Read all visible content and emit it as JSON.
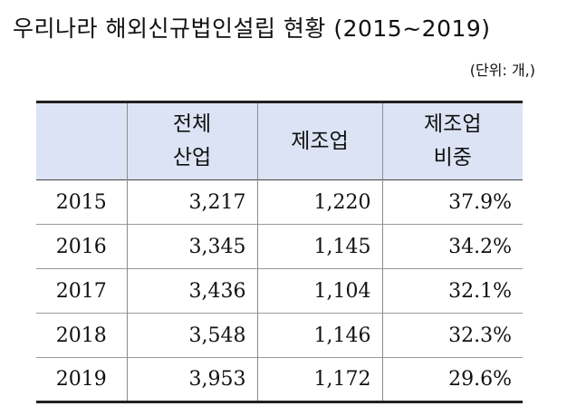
{
  "title": "우리나라 해외신규법인설립 현황 (2015~2019)",
  "unit": "(단위: 개,)",
  "table": {
    "headers": [
      {
        "lines": [
          "",
          ""
        ]
      },
      {
        "lines": [
          "전체",
          "산업"
        ]
      },
      {
        "lines": [
          "제조업"
        ]
      },
      {
        "lines": [
          "제조업",
          "비중"
        ]
      }
    ],
    "rows": [
      {
        "year": "2015",
        "total": "3,217",
        "manufacturing": "1,220",
        "share": "37.9%"
      },
      {
        "year": "2016",
        "total": "3,345",
        "manufacturing": "1,145",
        "share": "34.2%"
      },
      {
        "year": "2017",
        "total": "3,436",
        "manufacturing": "1,104",
        "share": "32.1%"
      },
      {
        "year": "2018",
        "total": "3,548",
        "manufacturing": "1,146",
        "share": "32.3%"
      },
      {
        "year": "2019",
        "total": "3,953",
        "manufacturing": "1,172",
        "share": "29.6%"
      }
    ]
  }
}
